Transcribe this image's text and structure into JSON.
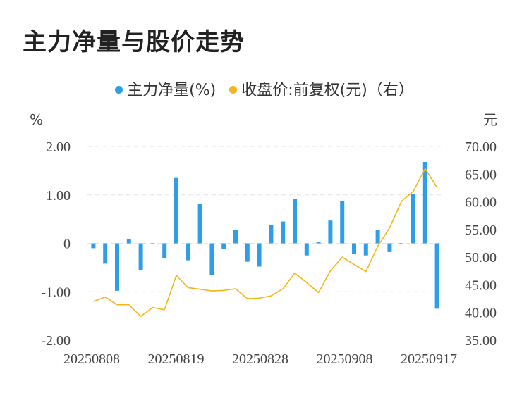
{
  "title": "主力净量与股价走势",
  "legend": [
    {
      "label": "主力净量(%)",
      "color": "#2e9ee8"
    },
    {
      "label": "收盘价:前复权(元)（右）",
      "color": "#f5b51c"
    }
  ],
  "chart_data": {
    "type": "bar",
    "title": "主力净量与股价走势",
    "y_left_unit": "%",
    "y_right_unit": "元",
    "ylim_left": [
      -2,
      2
    ],
    "ylim_right": [
      35,
      70
    ],
    "y_left_ticks": [
      "2.00",
      "1.00",
      "0",
      "-1.00",
      "-2.00"
    ],
    "y_right_ticks": [
      "70.00",
      "65.00",
      "60.00",
      "55.00",
      "50.00",
      "45.00",
      "40.00",
      "35.00"
    ],
    "x_tick_labels": [
      "20250808",
      "20250819",
      "20250828",
      "20250908",
      "20250917"
    ],
    "grid": true,
    "series": [
      {
        "name": "主力净量(%)",
        "type": "bar",
        "axis": "left",
        "color": "#2e9ee8",
        "values": [
          -0.1,
          -0.42,
          -0.98,
          0.08,
          -0.55,
          -0.02,
          -0.3,
          1.35,
          -0.35,
          0.82,
          -0.65,
          -0.12,
          0.28,
          -0.38,
          -0.48,
          0.38,
          0.45,
          0.92,
          -0.25,
          0.02,
          0.47,
          0.88,
          -0.22,
          -0.25,
          0.27,
          -0.18,
          -0.02,
          1.02,
          1.68,
          -1.35
        ]
      },
      {
        "name": "收盘价:前复权(元)（右）",
        "type": "line",
        "axis": "right",
        "color": "#f5b51c",
        "values": [
          42.0,
          42.8,
          41.4,
          41.4,
          39.3,
          40.9,
          40.5,
          46.7,
          44.5,
          44.2,
          43.9,
          44.0,
          44.3,
          42.5,
          42.6,
          43.0,
          44.3,
          47.1,
          45.4,
          43.6,
          47.5,
          50.0,
          48.7,
          47.4,
          52.0,
          55.3,
          60.1,
          61.9,
          66.0,
          62.6
        ]
      }
    ]
  }
}
